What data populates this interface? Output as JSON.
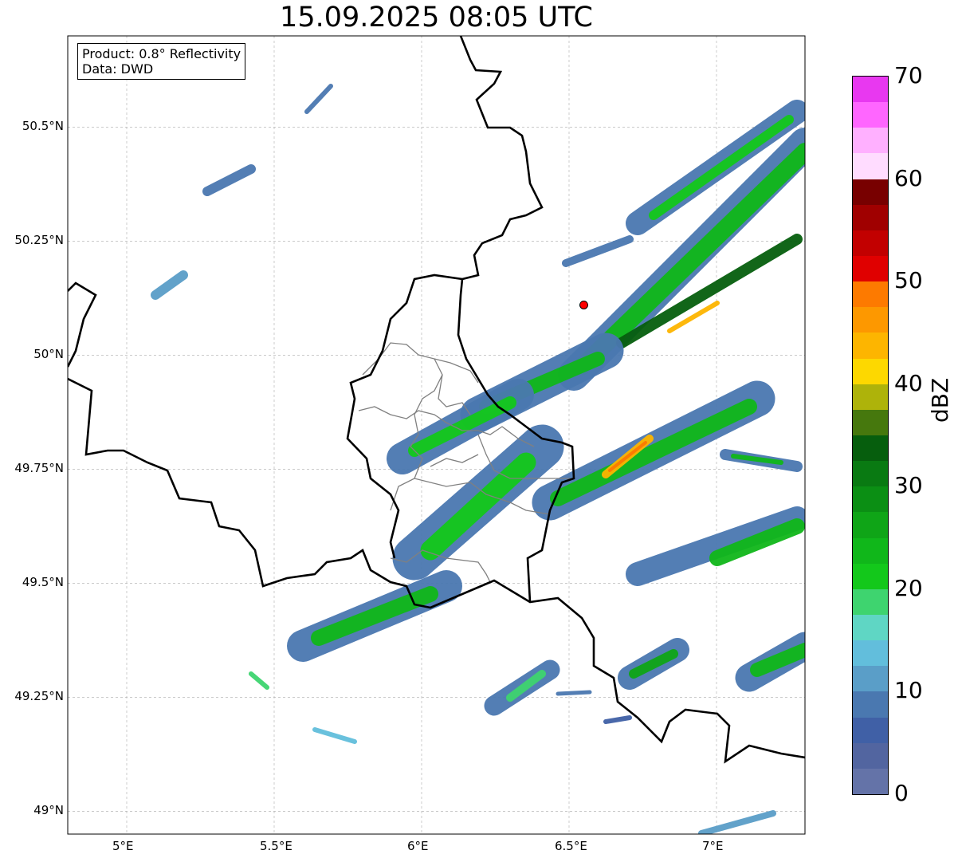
{
  "title": "15.09.2025 08:05 UTC",
  "info": {
    "product": "Product: 0.8° Reflectivity",
    "source": "Data: DWD"
  },
  "lon_ticks": [
    "5°E",
    "5.5°E",
    "6°E",
    "6.5°E",
    "7°E"
  ],
  "lat_ticks": [
    "50.5°N",
    "50.25°N",
    "50°N",
    "49.75°N",
    "49.5°N",
    "49.25°N",
    "49°N"
  ],
  "extent": {
    "lon": [
      4.8,
      7.3
    ],
    "lat": [
      48.95,
      50.7
    ]
  },
  "radar_site": {
    "lon": 6.55,
    "lat": 50.11,
    "color": "#ff0000"
  },
  "colorbar": {
    "label": "dBZ",
    "ticks": [
      "0",
      "10",
      "20",
      "30",
      "40",
      "50",
      "60",
      "70"
    ],
    "range": [
      0,
      70
    ],
    "step": 2.5,
    "colors": [
      "#6473a8",
      "#5265a0",
      "#4060a6",
      "#4a78b0",
      "#5a9ec8",
      "#62bedc",
      "#5fd6c4",
      "#3ed46f",
      "#13c81b",
      "#10b71a",
      "#0fa517",
      "#0b8f14",
      "#097a12",
      "#065e0d",
      "#46780d",
      "#aeb30a",
      "#fdd800",
      "#fdb500",
      "#fd9800",
      "#fd7a00",
      "#e00000",
      "#c20000",
      "#a00000",
      "#780000",
      "#ffdcff",
      "#ffb0ff",
      "#ff66ff",
      "#e838f0"
    ]
  }
}
